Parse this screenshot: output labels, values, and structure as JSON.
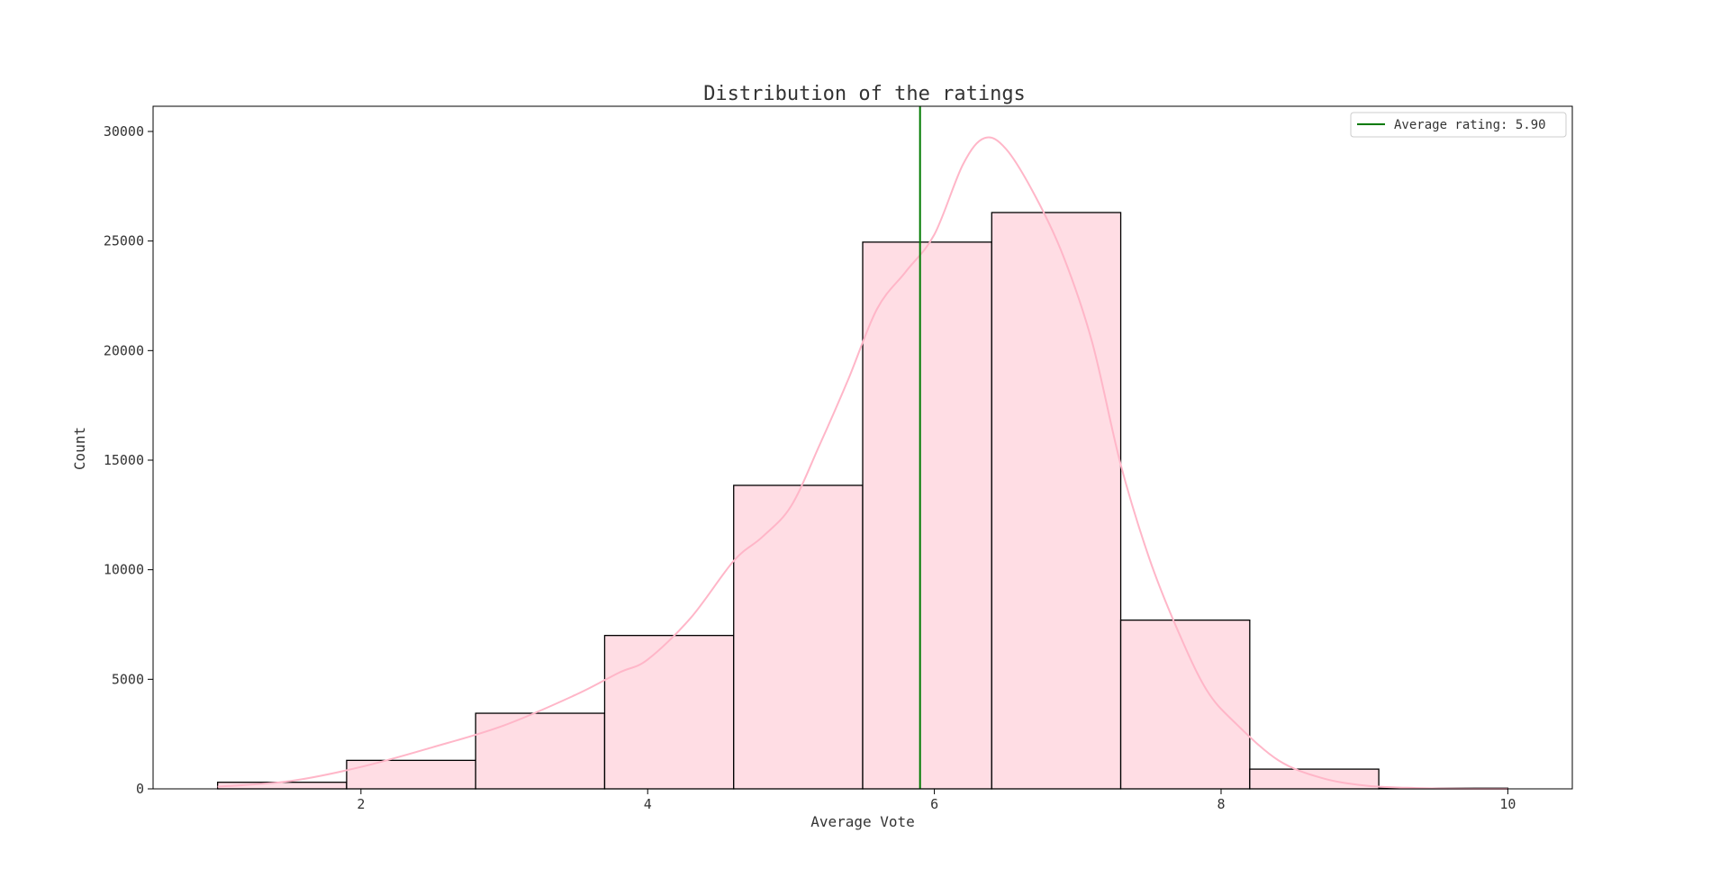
{
  "chart_data": {
    "type": "bar",
    "title": "Distribution of the ratings",
    "xlabel": "Average Vote",
    "ylabel": "Count",
    "xlim": [
      0.55,
      10.45
    ],
    "ylim": [
      0,
      31150
    ],
    "xticks": [
      2,
      4,
      6,
      8,
      10
    ],
    "yticks": [
      0,
      5000,
      10000,
      15000,
      20000,
      25000,
      30000
    ],
    "grid": false,
    "bins": [
      {
        "start": 1.0,
        "end": 1.9,
        "count": 300
      },
      {
        "start": 1.9,
        "end": 2.8,
        "count": 1300
      },
      {
        "start": 2.8,
        "end": 3.7,
        "count": 3450
      },
      {
        "start": 3.7,
        "end": 4.6,
        "count": 7000
      },
      {
        "start": 4.6,
        "end": 5.5,
        "count": 13850
      },
      {
        "start": 5.5,
        "end": 6.4,
        "count": 24950
      },
      {
        "start": 6.4,
        "end": 7.3,
        "count": 26300
      },
      {
        "start": 7.3,
        "end": 8.2,
        "count": 7700
      },
      {
        "start": 8.2,
        "end": 9.1,
        "count": 900
      },
      {
        "start": 9.1,
        "end": 10.0,
        "count": 30
      }
    ],
    "kde": {
      "x": [
        1.0,
        1.5,
        2.0,
        2.5,
        3.0,
        3.5,
        3.8,
        4.0,
        4.3,
        4.6,
        4.8,
        5.0,
        5.2,
        5.4,
        5.6,
        5.8,
        6.0,
        6.2,
        6.35,
        6.5,
        6.7,
        6.9,
        7.1,
        7.3,
        7.5,
        7.7,
        7.9,
        8.1,
        8.4,
        8.7,
        9.0,
        9.3,
        9.6,
        10.0
      ],
      "y": [
        100,
        350,
        1000,
        1900,
        2900,
        4300,
        5300,
        5900,
        7800,
        10400,
        11500,
        12900,
        15700,
        18700,
        21900,
        23600,
        25300,
        28500,
        29700,
        29200,
        27100,
        24300,
        20400,
        14800,
        10500,
        7200,
        4500,
        3000,
        1300,
        500,
        150,
        50,
        10,
        0
      ]
    },
    "series": [
      {
        "name": "Average rating: 5.90",
        "type": "vline",
        "x": 5.9
      }
    ],
    "legend_position": "top-right",
    "colors": {
      "bar_fill": "#ffdde4",
      "bar_edge": "#000000",
      "kde_line": "#ffb6c8",
      "mean_line": "#007a00"
    }
  }
}
